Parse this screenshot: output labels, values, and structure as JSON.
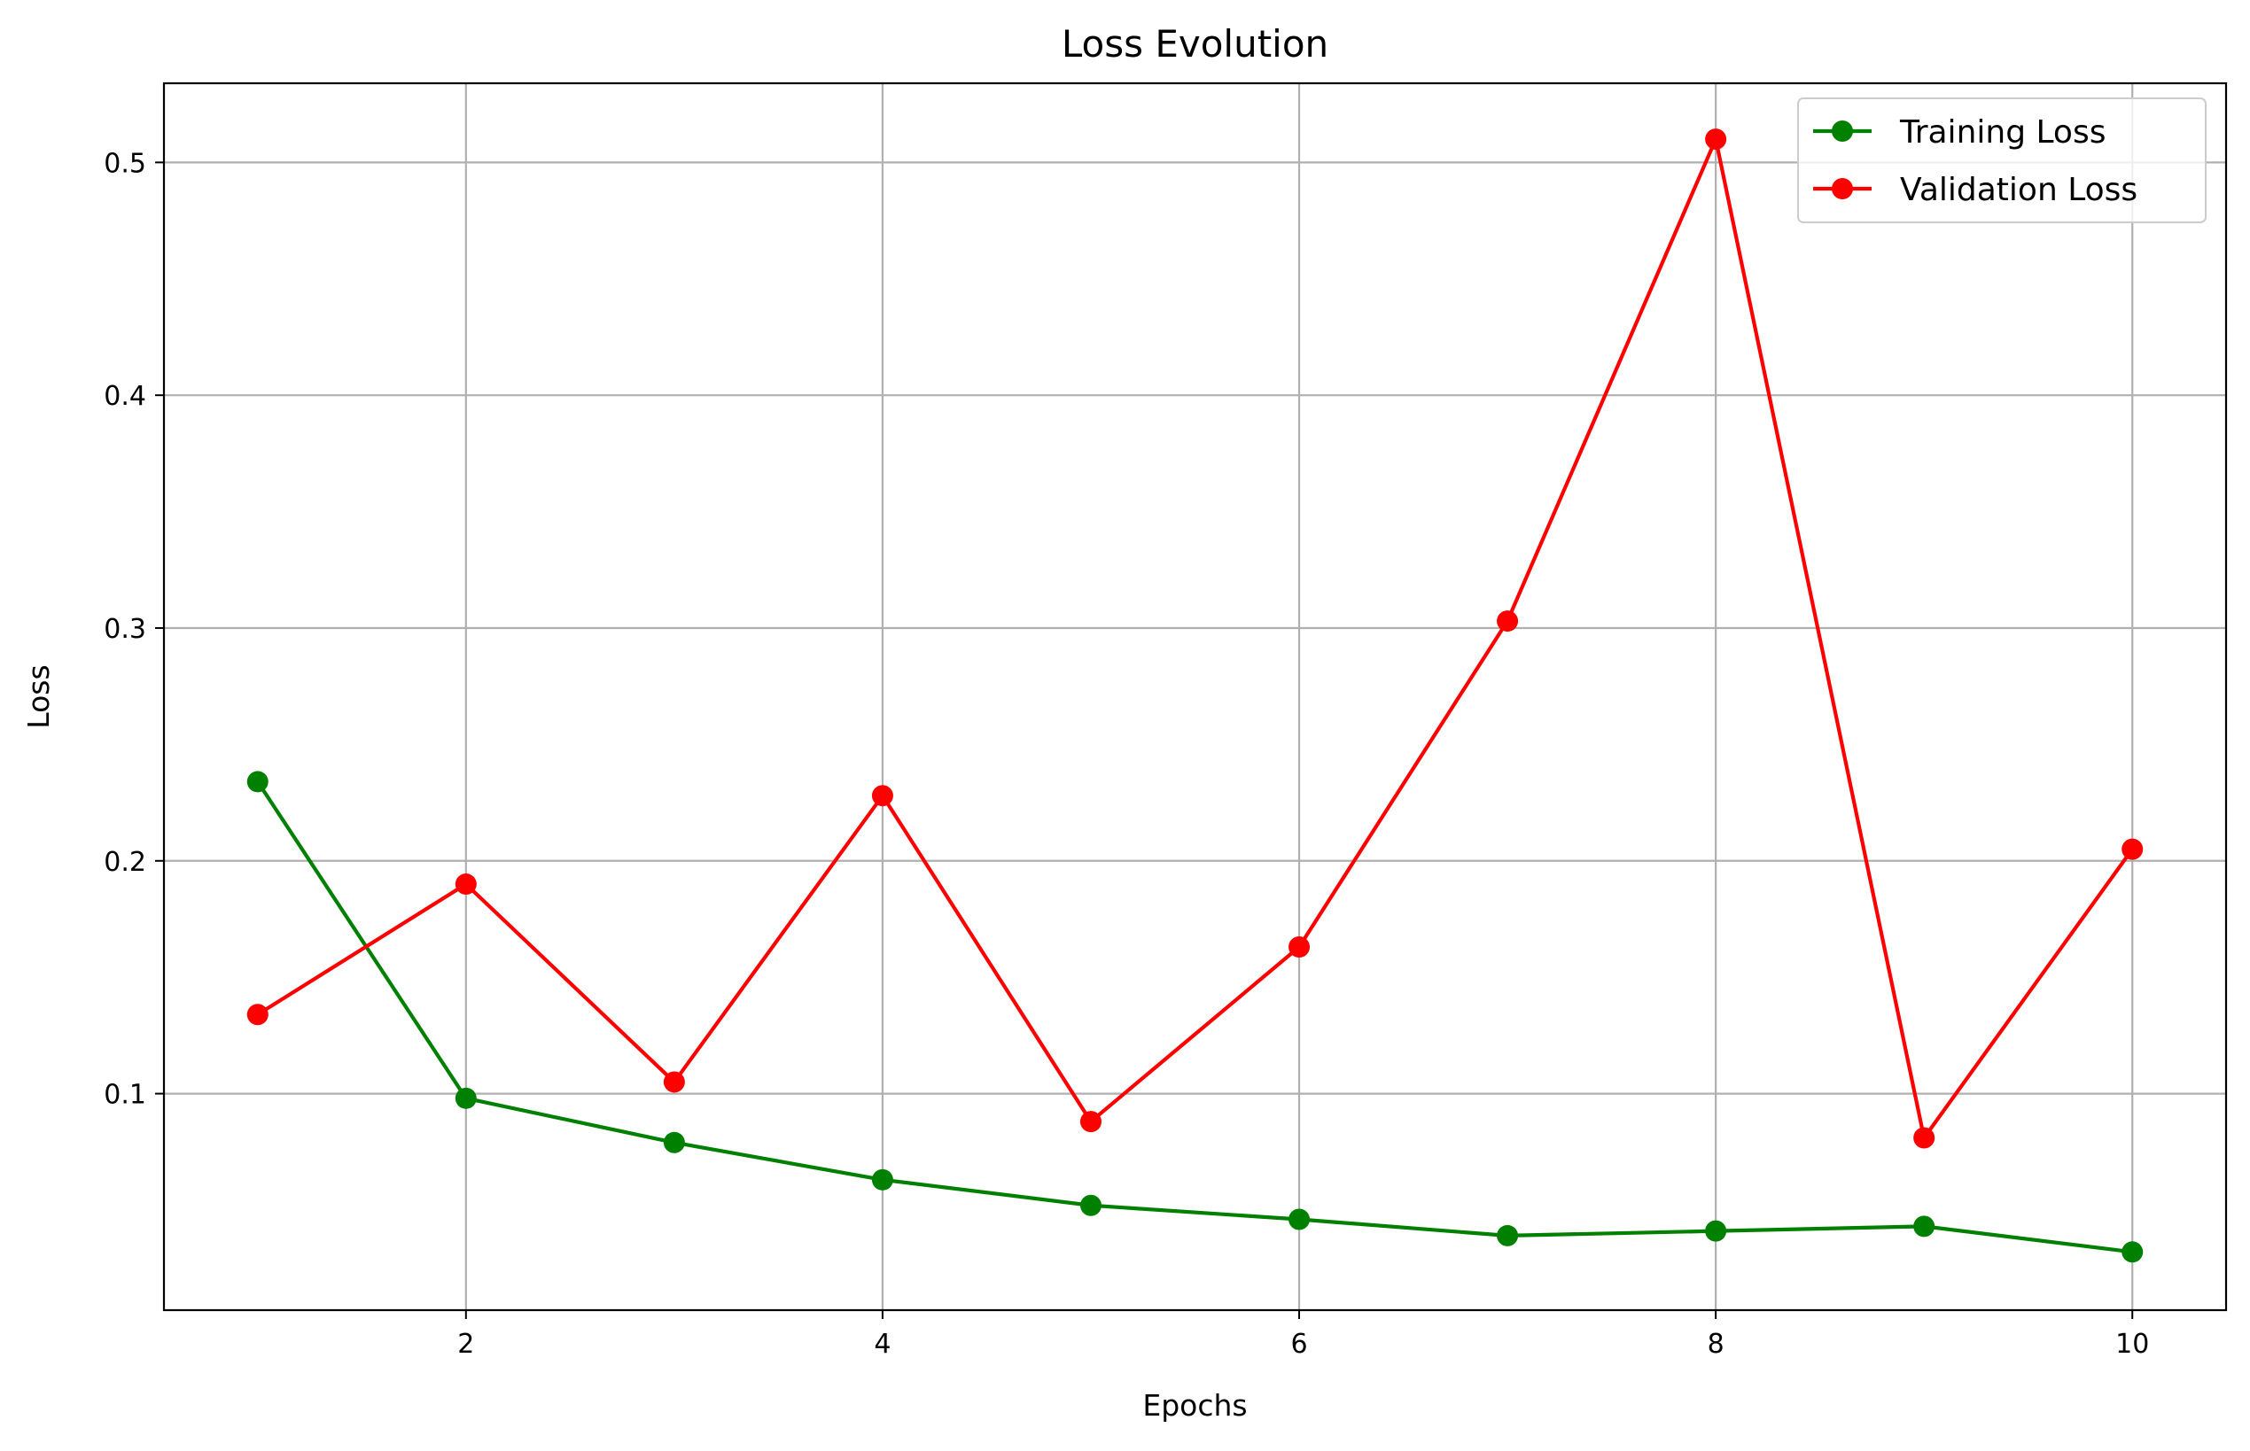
{
  "chart_data": {
    "type": "line",
    "title": "Loss Evolution",
    "xlabel": "Epochs",
    "ylabel": "Loss",
    "x": [
      1,
      2,
      3,
      4,
      5,
      6,
      7,
      8,
      9,
      10
    ],
    "xlim": [
      0.55,
      10.45
    ],
    "ylim": [
      0.007,
      0.534
    ],
    "xticks": [
      2,
      4,
      6,
      8,
      10
    ],
    "xtick_labels": [
      "2",
      "4",
      "6",
      "8",
      "10"
    ],
    "yticks": [
      0.1,
      0.2,
      0.3,
      0.4,
      0.5
    ],
    "ytick_labels": [
      "0.1",
      "0.2",
      "0.3",
      "0.4",
      "0.5"
    ],
    "grid": true,
    "legend_position": "top-right",
    "series": [
      {
        "name": "Training Loss",
        "color": "#008000",
        "marker": "circle",
        "values": [
          0.234,
          0.098,
          0.079,
          0.063,
          0.052,
          0.046,
          0.039,
          0.041,
          0.043,
          0.032
        ]
      },
      {
        "name": "Validation Loss",
        "color": "#ff0000",
        "marker": "circle",
        "values": [
          0.134,
          0.19,
          0.105,
          0.228,
          0.088,
          0.163,
          0.303,
          0.51,
          0.081,
          0.205
        ]
      }
    ]
  }
}
